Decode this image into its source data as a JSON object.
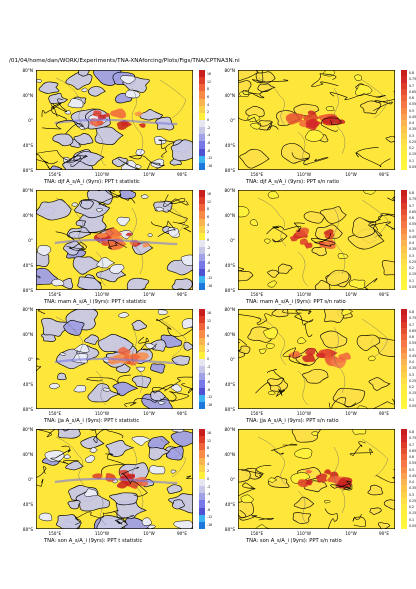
{
  "page": {
    "path_title": "/01/04/home/dan/WORK/Experiments/TNA-XNAforcing/Plots/Figs/TNA/CPTNA3N.ni"
  },
  "colors": {
    "land_fill": "#ffe63a",
    "ocean_fill": "#e9ebf5",
    "contour": "#000000"
  },
  "lat_labels": [
    "80°N",
    "40°N",
    "0°",
    "40°S",
    "80°S"
  ],
  "lon_labels": [
    "150°E",
    "110°W",
    "10°W",
    "90°E"
  ],
  "colorbars": {
    "t_statistic": {
      "labels": [
        "16",
        "12",
        "8",
        "6",
        "4",
        "2",
        "0",
        "-2",
        "-4",
        "-6",
        "-8",
        "-12",
        "-16"
      ],
      "colors": [
        "#c81e1e",
        "#dc3c28",
        "#f0643c",
        "#f88c46",
        "#fab450",
        "#fcd24a",
        "#fff03c",
        "#e6e6f0",
        "#c8c8e6",
        "#a0a0e6",
        "#7878e6",
        "#5050d2",
        "#3cb4f0",
        "#1e78dc"
      ]
    },
    "sn_ratio": {
      "labels": [
        "0.8",
        "0.75",
        "0.7",
        "0.65",
        "0.6",
        "0.55",
        "0.5",
        "0.45",
        "0.4",
        "0.35",
        "0.3",
        "0.25",
        "0.2",
        "0.15",
        "0.1",
        "0.05"
      ],
      "colors": [
        "#c81e1e",
        "#d22828",
        "#dc3c28",
        "#e65032",
        "#f0643c",
        "#f57846",
        "#f88c46",
        "#faa050",
        "#fab450",
        "#fcc44a",
        "#fcd24a",
        "#fde048",
        "#feea42",
        "#fff03c",
        "#fff43c",
        "#fff83c"
      ]
    }
  },
  "chart_data": [
    {
      "type": "heatmap",
      "title": "TNA: djf A_s/A_i (9yrs): PPT t statistic",
      "season": "djf",
      "metric": "t statistic",
      "colorbar": "t_statistic"
    },
    {
      "type": "heatmap",
      "title": "TNA: djf A_s/A_i (9yrs): PPT s/n ratio",
      "season": "djf",
      "metric": "s/n ratio",
      "colorbar": "sn_ratio"
    },
    {
      "type": "heatmap",
      "title": "TNA: mam A_s/A_i (9yrs): PPT t statistic",
      "season": "mam",
      "metric": "t statistic",
      "colorbar": "t_statistic"
    },
    {
      "type": "heatmap",
      "title": "TNA: mam A_s/A_i (9yrs): PPT s/n ratio",
      "season": "mam",
      "metric": "s/n ratio",
      "colorbar": "sn_ratio"
    },
    {
      "type": "heatmap",
      "title": "TNA: jja A_s/A_i (9yrs): PPT t statistic",
      "season": "jja",
      "metric": "t statistic",
      "colorbar": "t_statistic"
    },
    {
      "type": "heatmap",
      "title": "TNA: jja A_s/A_i (9yrs): PPT s/n ratio",
      "season": "jja",
      "metric": "s/n ratio",
      "colorbar": "sn_ratio"
    },
    {
      "type": "heatmap",
      "title": "TNA: son A_s/A_i (9yrs): PPT t statistic",
      "season": "son",
      "metric": "t statistic",
      "colorbar": "t_statistic"
    },
    {
      "type": "heatmap",
      "title": "TNA: son A_s/A_i (9yrs): PPT s/n ratio",
      "season": "son",
      "metric": "s/n ratio",
      "colorbar": "sn_ratio"
    }
  ]
}
